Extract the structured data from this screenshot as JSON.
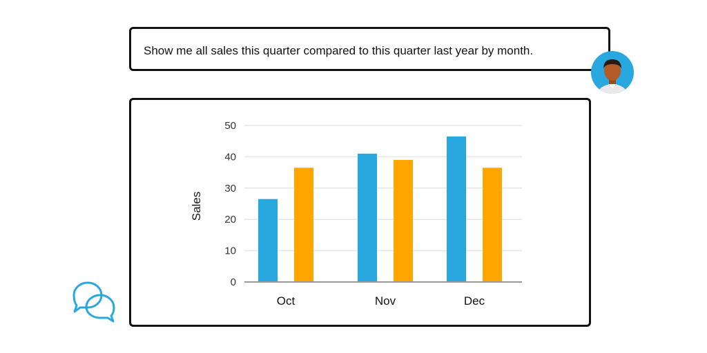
{
  "query": {
    "text": "Show me all sales this quarter compared to this quarter last year by month."
  },
  "icons": {
    "avatar": "user-avatar-icon",
    "chat": "chat-bubbles-icon"
  },
  "colors": {
    "this_year": "#29a8e0",
    "last_year": "#ffa600",
    "avatar_bg": "#29a8e0",
    "chat_icon": "#29a8e0"
  },
  "chart_data": {
    "type": "bar",
    "ylabel": "Sales",
    "xlabel": "",
    "title": "",
    "categories": [
      "Oct",
      "Nov",
      "Dec"
    ],
    "series": [
      {
        "values": [
          26.5,
          41,
          46.5
        ],
        "color": "#29a8e0"
      },
      {
        "values": [
          36.5,
          39,
          36.5
        ],
        "color": "#ffa600"
      }
    ],
    "ylim": [
      0,
      50
    ],
    "yticks": [
      0,
      10,
      20,
      30,
      40,
      50
    ],
    "grid": true,
    "legend": "none"
  }
}
